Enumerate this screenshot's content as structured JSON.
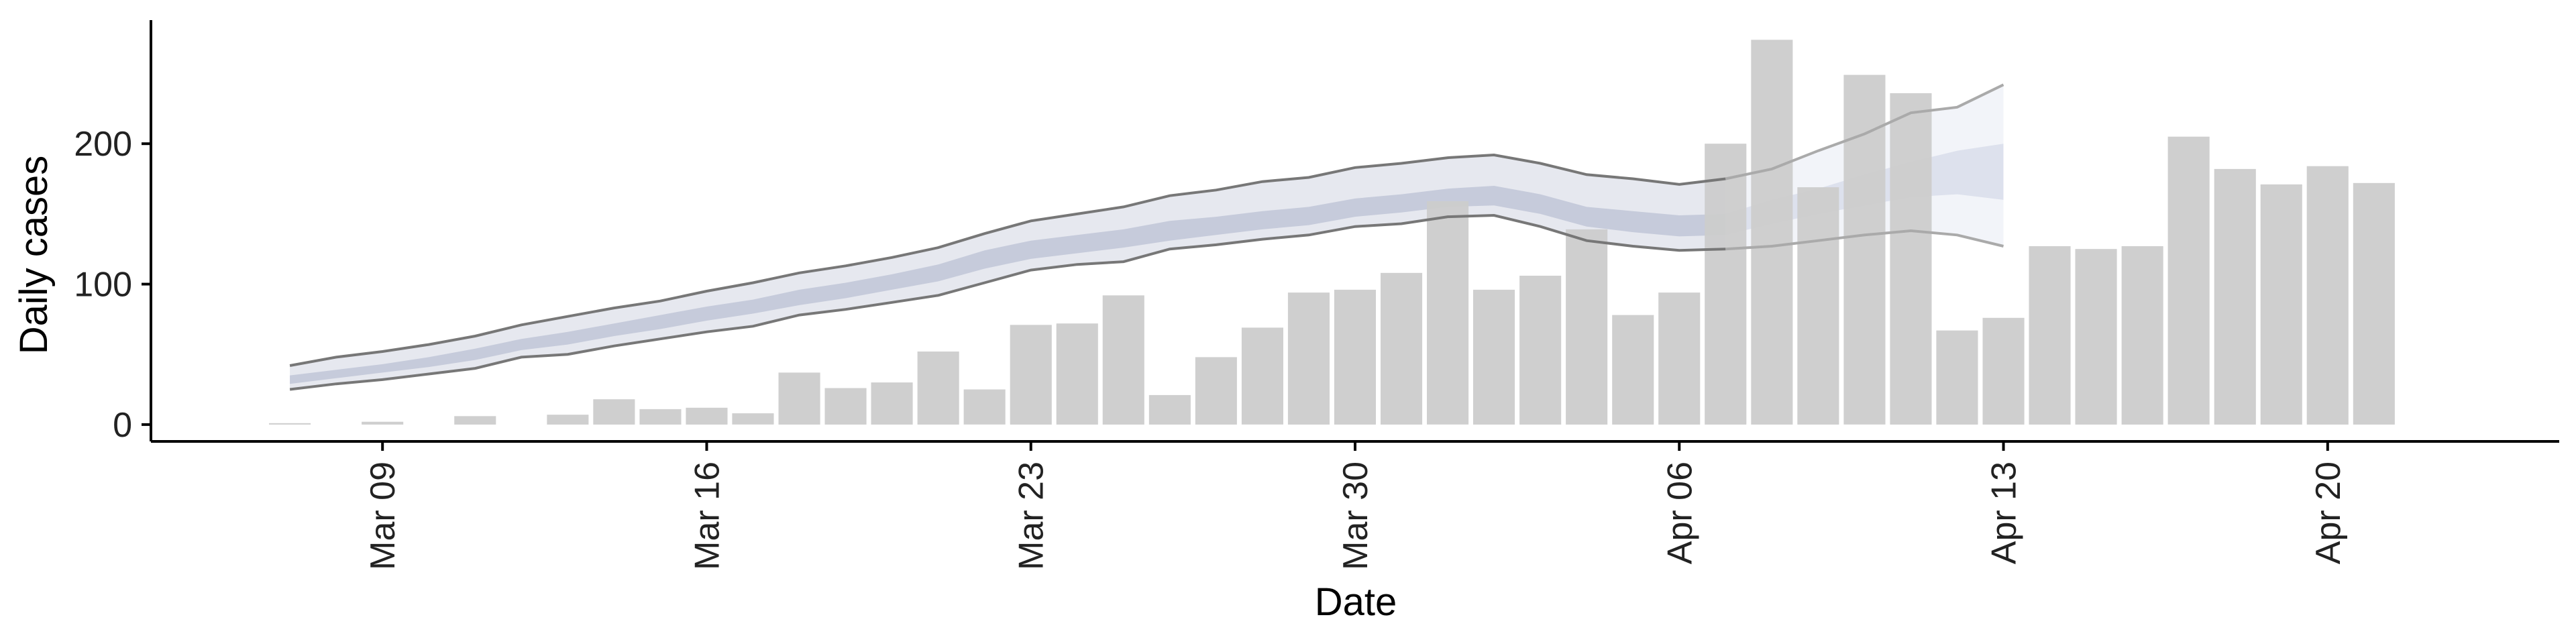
{
  "chart_data": {
    "type": "bar",
    "xlabel": "Date",
    "ylabel": "Daily cases",
    "ylim": [
      -12,
      288
    ],
    "y_ticks": [
      0,
      100,
      200
    ],
    "x_ticks": [
      {
        "date": "2020-03-09",
        "label": "Mar 09"
      },
      {
        "date": "2020-03-16",
        "label": "Mar 16"
      },
      {
        "date": "2020-03-23",
        "label": "Mar 23"
      },
      {
        "date": "2020-03-30",
        "label": "Mar 30"
      },
      {
        "date": "2020-04-06",
        "label": "Apr 06"
      },
      {
        "date": "2020-04-13",
        "label": "Apr 13"
      },
      {
        "date": "2020-04-20",
        "label": "Apr 20"
      }
    ],
    "xlim": [
      "2020-03-04",
      "2020-04-25"
    ],
    "grid": false,
    "colors": {
      "bars": "#cccccc",
      "estimate_line": "#777777",
      "band_outer": "#e6e8ef",
      "band_inner": "#c6cbdb",
      "forecast_band_outer": "#f1f3f8",
      "forecast_band_inner": "#d7dcea",
      "forecast_line": "#aaaaaa",
      "axis": "#000000"
    },
    "bars": {
      "dates": [
        "2020-03-07",
        "2020-03-08",
        "2020-03-09",
        "2020-03-10",
        "2020-03-11",
        "2020-03-12",
        "2020-03-13",
        "2020-03-14",
        "2020-03-15",
        "2020-03-16",
        "2020-03-17",
        "2020-03-18",
        "2020-03-19",
        "2020-03-20",
        "2020-03-21",
        "2020-03-22",
        "2020-03-23",
        "2020-03-24",
        "2020-03-25",
        "2020-03-26",
        "2020-03-27",
        "2020-03-28",
        "2020-03-29",
        "2020-03-30",
        "2020-03-31",
        "2020-04-01",
        "2020-04-02",
        "2020-04-03",
        "2020-04-04",
        "2020-04-05",
        "2020-04-06",
        "2020-04-07",
        "2020-04-08",
        "2020-04-09",
        "2020-04-10",
        "2020-04-11",
        "2020-04-12",
        "2020-04-13",
        "2020-04-14",
        "2020-04-15",
        "2020-04-16",
        "2020-04-17",
        "2020-04-18",
        "2020-04-19",
        "2020-04-20",
        "2020-04-21",
        "2020-04-22"
      ],
      "values": [
        1,
        0,
        2,
        0,
        6,
        0,
        7,
        18,
        11,
        12,
        8,
        37,
        26,
        30,
        52,
        25,
        71,
        72,
        92,
        21,
        48,
        69,
        94,
        96,
        108,
        159,
        96,
        106,
        139,
        78,
        94,
        200,
        274,
        169,
        249,
        236,
        67,
        76,
        127,
        125,
        127,
        205,
        182,
        171,
        184,
        172,
        0
      ]
    },
    "series": [
      {
        "name": "estimate",
        "dates": [
          "2020-03-07",
          "2020-03-08",
          "2020-03-09",
          "2020-03-10",
          "2020-03-11",
          "2020-03-12",
          "2020-03-13",
          "2020-03-14",
          "2020-03-15",
          "2020-03-16",
          "2020-03-17",
          "2020-03-18",
          "2020-03-19",
          "2020-03-20",
          "2020-03-21",
          "2020-03-22",
          "2020-03-23",
          "2020-03-24",
          "2020-03-25",
          "2020-03-26",
          "2020-03-27",
          "2020-03-28",
          "2020-03-29",
          "2020-03-30",
          "2020-03-31",
          "2020-04-01",
          "2020-04-02",
          "2020-04-03",
          "2020-04-04",
          "2020-04-05",
          "2020-04-06",
          "2020-04-07"
        ],
        "upper": [
          42,
          48,
          52,
          57,
          63,
          71,
          77,
          83,
          88,
          95,
          101,
          108,
          113,
          119,
          126,
          136,
          145,
          150,
          155,
          163,
          167,
          173,
          176,
          183,
          186,
          190,
          192,
          186,
          178,
          175,
          171,
          175
        ],
        "lower": [
          25,
          29,
          32,
          36,
          40,
          48,
          50,
          56,
          61,
          66,
          70,
          78,
          82,
          87,
          92,
          101,
          110,
          114,
          116,
          125,
          128,
          132,
          135,
          141,
          143,
          148,
          149,
          141,
          131,
          127,
          124,
          125
        ],
        "inner_upper": [
          35,
          39,
          43,
          48,
          54,
          61,
          66,
          72,
          78,
          84,
          89,
          96,
          101,
          107,
          114,
          124,
          131,
          135,
          139,
          145,
          148,
          152,
          155,
          161,
          164,
          168,
          170,
          164,
          155,
          152,
          149,
          150
        ],
        "inner_lower": [
          29,
          33,
          37,
          41,
          46,
          53,
          57,
          63,
          68,
          74,
          79,
          85,
          90,
          96,
          102,
          111,
          118,
          122,
          126,
          131,
          135,
          139,
          142,
          148,
          151,
          155,
          156,
          150,
          141,
          137,
          134,
          135
        ]
      },
      {
        "name": "forecast",
        "dates": [
          "2020-04-07",
          "2020-04-08",
          "2020-04-09",
          "2020-04-10",
          "2020-04-11",
          "2020-04-12",
          "2020-04-13"
        ],
        "upper": [
          175,
          182,
          195,
          207,
          222,
          226,
          242
        ],
        "lower": [
          125,
          127,
          131,
          135,
          138,
          135,
          127
        ],
        "inner_upper": [
          150,
          160,
          168,
          178,
          187,
          195,
          200
        ],
        "inner_lower": [
          135,
          143,
          150,
          156,
          162,
          164,
          160
        ]
      }
    ]
  }
}
